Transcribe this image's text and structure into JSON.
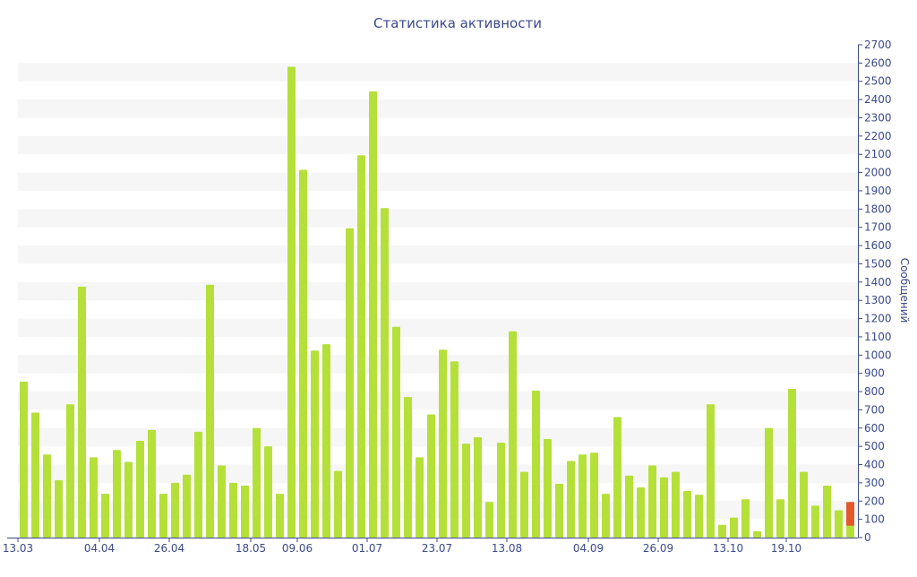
{
  "chart_data": {
    "type": "bar",
    "title": "Статистика активности",
    "ylabel": "Сообщений",
    "ylim": [
      0,
      2700
    ],
    "ytick_step": 100,
    "grid": "alternating horizontal bands",
    "x_tick_labels": [
      "13.03",
      "04.04",
      "26.04",
      "18.05",
      "09.06",
      "01.07",
      "23.07",
      "13.08",
      "04.09",
      "26.09",
      "13.10",
      "19.10"
    ],
    "x_tick_bar_index": [
      0,
      7,
      13,
      20,
      24,
      30,
      36,
      42,
      49,
      55,
      61,
      66
    ],
    "values": [
      855,
      685,
      455,
      315,
      730,
      1375,
      440,
      240,
      480,
      415,
      530,
      590,
      240,
      300,
      345,
      580,
      1385,
      395,
      300,
      285,
      600,
      500,
      240,
      2580,
      2015,
      1025,
      1060,
      365,
      1695,
      2095,
      2445,
      1805,
      1155,
      770,
      440,
      675,
      1030,
      965,
      515,
      550,
      195,
      520,
      1130,
      360,
      805,
      540,
      295,
      420,
      455,
      465,
      240,
      660,
      340,
      275,
      395,
      330,
      360,
      255,
      235,
      730,
      70,
      110,
      210,
      35,
      600,
      210,
      815,
      360,
      175,
      285,
      150,
      130
    ],
    "highlight": {
      "index": 71,
      "top": 195,
      "bottom": 65
    },
    "colors": {
      "bar": "#b5e03a",
      "highlight": "#e35a2a",
      "band": "#f6f6f6",
      "axis": "#3b4a8a"
    }
  }
}
